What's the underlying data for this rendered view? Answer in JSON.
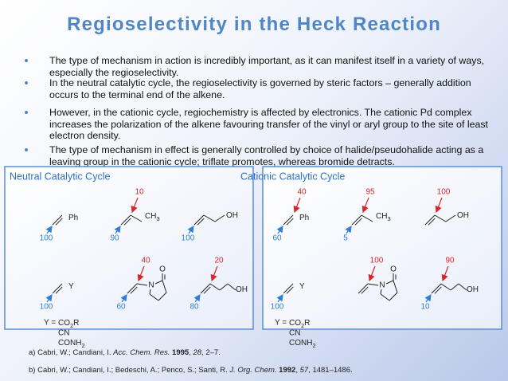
{
  "title": "Regioselectivity in the Heck Reaction",
  "bullets": [
    "The type of mechanism in action is incredibly important, as it can manifest itself in a variety of ways, especially the regioselectivity.",
    "In the neutral catalytic cycle, the regioselectivity is governed by steric factors – generally addition occurs to the terminal end of the alkene.",
    "However, in the cationic cycle, regiochemistry is affected by electronics. The cationic Pd complex increases the polarization of the alkene favouring transfer of the vinyl or aryl group to the site of least electron density.",
    "The type of mechanism in effect is generally controlled by choice of halide/pseudohalide acting as a leaving group in the cationic cycle; triflate promotes, whereas bromide detracts."
  ],
  "panels": [
    {
      "title": "Neutral Catalytic Cycle",
      "structures": [
        {
          "group": "Ph",
          "terminal": "100"
        },
        {
          "group": "CH3",
          "internal": "10",
          "terminal": "90"
        },
        {
          "group": "OH",
          "terminal": "100"
        },
        {
          "group": "Y",
          "terminal": "100"
        },
        {
          "group": "N",
          "oxygen": "O",
          "internal": "40",
          "terminal": "60"
        },
        {
          "group": "OH",
          "internal": "20",
          "terminal": "80"
        }
      ],
      "y_definition": {
        "label": "Y =",
        "options": [
          "CO2R",
          "CN",
          "CONH2"
        ]
      }
    },
    {
      "title": "Cationic Catalytic Cycle",
      "structures": [
        {
          "group": "Ph",
          "internal": "40",
          "terminal": "60"
        },
        {
          "group": "CH3",
          "internal": "95",
          "terminal": "5"
        },
        {
          "group": "OH",
          "internal": "100"
        },
        {
          "group": "Y",
          "terminal": "100"
        },
        {
          "group": "N",
          "oxygen": "O",
          "internal": "100"
        },
        {
          "group": "OH",
          "internal": "90",
          "terminal": "10"
        }
      ],
      "y_definition": {
        "label": "Y =",
        "options": [
          "CO2R",
          "CN",
          "CONH2"
        ]
      }
    }
  ],
  "references": [
    [
      {
        "text": "a) Cabri, W.; Candiani, I. "
      },
      {
        "text": "Acc. Chem. Res.",
        "style": "italic"
      },
      {
        "text": " 1995",
        "style": "bold"
      },
      {
        "text": ", "
      },
      {
        "text": "28",
        "style": "italic"
      },
      {
        "text": ", 2–7."
      }
    ],
    [
      {
        "text": "b) Cabri, W.; Candiani, I.; Bedeschi, A.; Penco, S.; Santi, R. "
      },
      {
        "text": "J. Org. Chem.",
        "style": "italic"
      },
      {
        "text": " 1992",
        "style": "bold"
      },
      {
        "text": ", "
      },
      {
        "text": "57",
        "style": "italic"
      },
      {
        "text": ", 1481–1486."
      }
    ]
  ]
}
